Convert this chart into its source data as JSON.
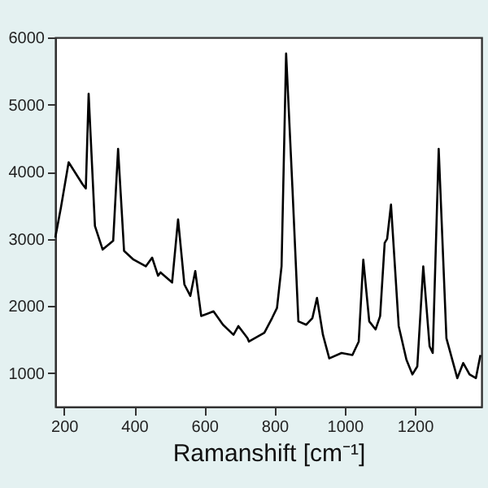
{
  "chart_data": {
    "type": "line",
    "xlabel": "Ramanshift [cm⁻¹]",
    "xlim": [
      175,
      1390
    ],
    "xticks": [
      200,
      400,
      600,
      800,
      1000,
      1200
    ],
    "ylim": [
      500,
      6000
    ],
    "yticks": [
      1000,
      2000,
      3000,
      4000,
      5000,
      6000
    ],
    "grid": false,
    "marker": "none",
    "line_style": "solid",
    "x": [
      175,
      191,
      213,
      253,
      262,
      270,
      288,
      310,
      340,
      354,
      371,
      398,
      433,
      451,
      468,
      475,
      508,
      525,
      543,
      560,
      574,
      591,
      626,
      653,
      683,
      697,
      723,
      727,
      771,
      793,
      807,
      820,
      833,
      851,
      868,
      890,
      908,
      921,
      938,
      956,
      991,
      1022,
      1040,
      1053,
      1070,
      1088,
      1101,
      1114,
      1121,
      1132,
      1154,
      1176,
      1193,
      1207,
      1224,
      1242,
      1251,
      1268,
      1290,
      1321,
      1338,
      1356,
      1374,
      1387
    ],
    "series": [
      {
        "color": "#000000",
        "values": [
          3020,
          3465,
          4140,
          3810,
          3750,
          5160,
          3190,
          2840,
          2970,
          4340,
          2820,
          2690,
          2590,
          2720,
          2450,
          2500,
          2350,
          3290,
          2320,
          2150,
          2520,
          1850,
          1920,
          1720,
          1570,
          1700,
          1520,
          1470,
          1600,
          1820,
          1970,
          2590,
          5760,
          3760,
          1770,
          1720,
          1820,
          2120,
          1570,
          1220,
          1300,
          1270,
          1470,
          2690,
          1770,
          1650,
          1850,
          2940,
          3000,
          3510,
          1700,
          1200,
          980,
          1100,
          2590,
          1400,
          1300,
          4340,
          1520,
          925,
          1150,
          980,
          925,
          1270
        ]
      }
    ]
  }
}
